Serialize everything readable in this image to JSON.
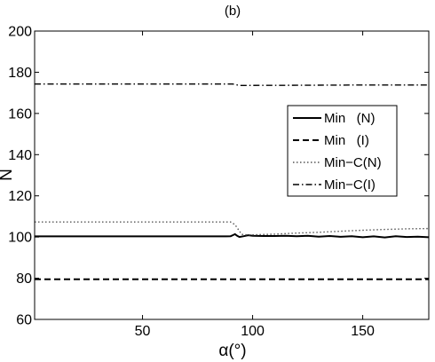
{
  "chart_data": {
    "type": "line",
    "title": "(b)",
    "xlabel": "α(°)",
    "ylabel": "N",
    "xlim": [
      1,
      180
    ],
    "ylim": [
      60,
      200
    ],
    "xticks": [
      50,
      100,
      150
    ],
    "yticks": [
      60,
      80,
      100,
      120,
      140,
      160,
      180,
      200
    ],
    "grid": false,
    "legend_position": "right",
    "series": [
      {
        "name": "Min   (N)",
        "style": "solid",
        "color": "#000000",
        "points": [
          [
            1,
            100.3
          ],
          [
            88,
            100.3
          ],
          [
            90,
            100.4
          ],
          [
            91,
            100.9
          ],
          [
            92,
            101.4
          ],
          [
            93,
            100.6
          ],
          [
            94,
            100.0
          ],
          [
            96,
            100.4
          ],
          [
            98,
            100.9
          ],
          [
            100,
            100.6
          ],
          [
            105,
            100.5
          ],
          [
            110,
            100.5
          ],
          [
            115,
            100.6
          ],
          [
            120,
            100.4
          ],
          [
            125,
            100.6
          ],
          [
            130,
            100.2
          ],
          [
            135,
            100.5
          ],
          [
            140,
            100.1
          ],
          [
            145,
            100.4
          ],
          [
            150,
            99.9
          ],
          [
            155,
            100.3
          ],
          [
            160,
            99.8
          ],
          [
            165,
            100.4
          ],
          [
            170,
            100.0
          ],
          [
            175,
            100.2
          ],
          [
            180,
            99.9
          ]
        ]
      },
      {
        "name": "Min   (I)",
        "style": "dashed",
        "color": "#000000",
        "points": [
          [
            1,
            79.5
          ],
          [
            180,
            79.5
          ]
        ]
      },
      {
        "name": "Min−C(N)",
        "style": "dotted",
        "color": "#555555",
        "points": [
          [
            1,
            107.3
          ],
          [
            90,
            107.3
          ],
          [
            92,
            106.0
          ],
          [
            95,
            101.3
          ],
          [
            98,
            101.0
          ],
          [
            110,
            101.4
          ],
          [
            120,
            101.9
          ],
          [
            130,
            102.3
          ],
          [
            140,
            102.8
          ],
          [
            150,
            103.3
          ],
          [
            160,
            103.7
          ],
          [
            170,
            104.0
          ],
          [
            180,
            104.1
          ]
        ]
      },
      {
        "name": "Min−C(I)",
        "style": "dashdot",
        "color": "#000000",
        "points": [
          [
            1,
            174.3
          ],
          [
            91,
            174.3
          ],
          [
            94,
            173.6
          ],
          [
            120,
            173.7
          ],
          [
            150,
            173.8
          ],
          [
            180,
            173.8
          ]
        ]
      }
    ]
  }
}
